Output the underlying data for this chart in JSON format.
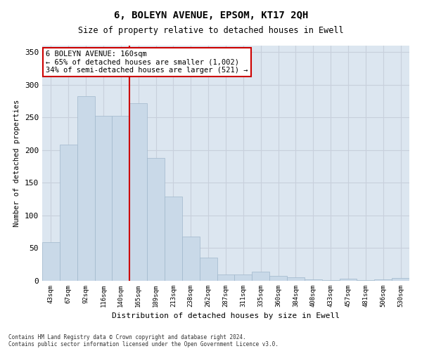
{
  "title": "6, BOLEYN AVENUE, EPSOM, KT17 2QH",
  "subtitle": "Size of property relative to detached houses in Ewell",
  "xlabel": "Distribution of detached houses by size in Ewell",
  "ylabel": "Number of detached properties",
  "categories": [
    "43sqm",
    "67sqm",
    "92sqm",
    "116sqm",
    "140sqm",
    "165sqm",
    "189sqm",
    "213sqm",
    "238sqm",
    "262sqm",
    "287sqm",
    "311sqm",
    "335sqm",
    "360sqm",
    "384sqm",
    "408sqm",
    "433sqm",
    "457sqm",
    "481sqm",
    "506sqm",
    "530sqm"
  ],
  "values": [
    59,
    209,
    283,
    253,
    253,
    272,
    188,
    129,
    68,
    35,
    10,
    10,
    14,
    8,
    5,
    2,
    1,
    3,
    1,
    2,
    4
  ],
  "bar_color": "#c9d9e8",
  "bar_edge_color": "#a0b8cc",
  "bar_width": 1.0,
  "vline_index": 4.5,
  "vline_color": "#cc0000",
  "annotation_text": "6 BOLEYN AVENUE: 160sqm\n← 65% of detached houses are smaller (1,002)\n34% of semi-detached houses are larger (521) →",
  "annotation_box_color": "#ffffff",
  "annotation_box_edge": "#cc0000",
  "ylim": [
    0,
    360
  ],
  "yticks": [
    0,
    50,
    100,
    150,
    200,
    250,
    300,
    350
  ],
  "grid_color": "#c8d0dc",
  "background_color": "#dce6f0",
  "footer_line1": "Contains HM Land Registry data © Crown copyright and database right 2024.",
  "footer_line2": "Contains public sector information licensed under the Open Government Licence v3.0."
}
